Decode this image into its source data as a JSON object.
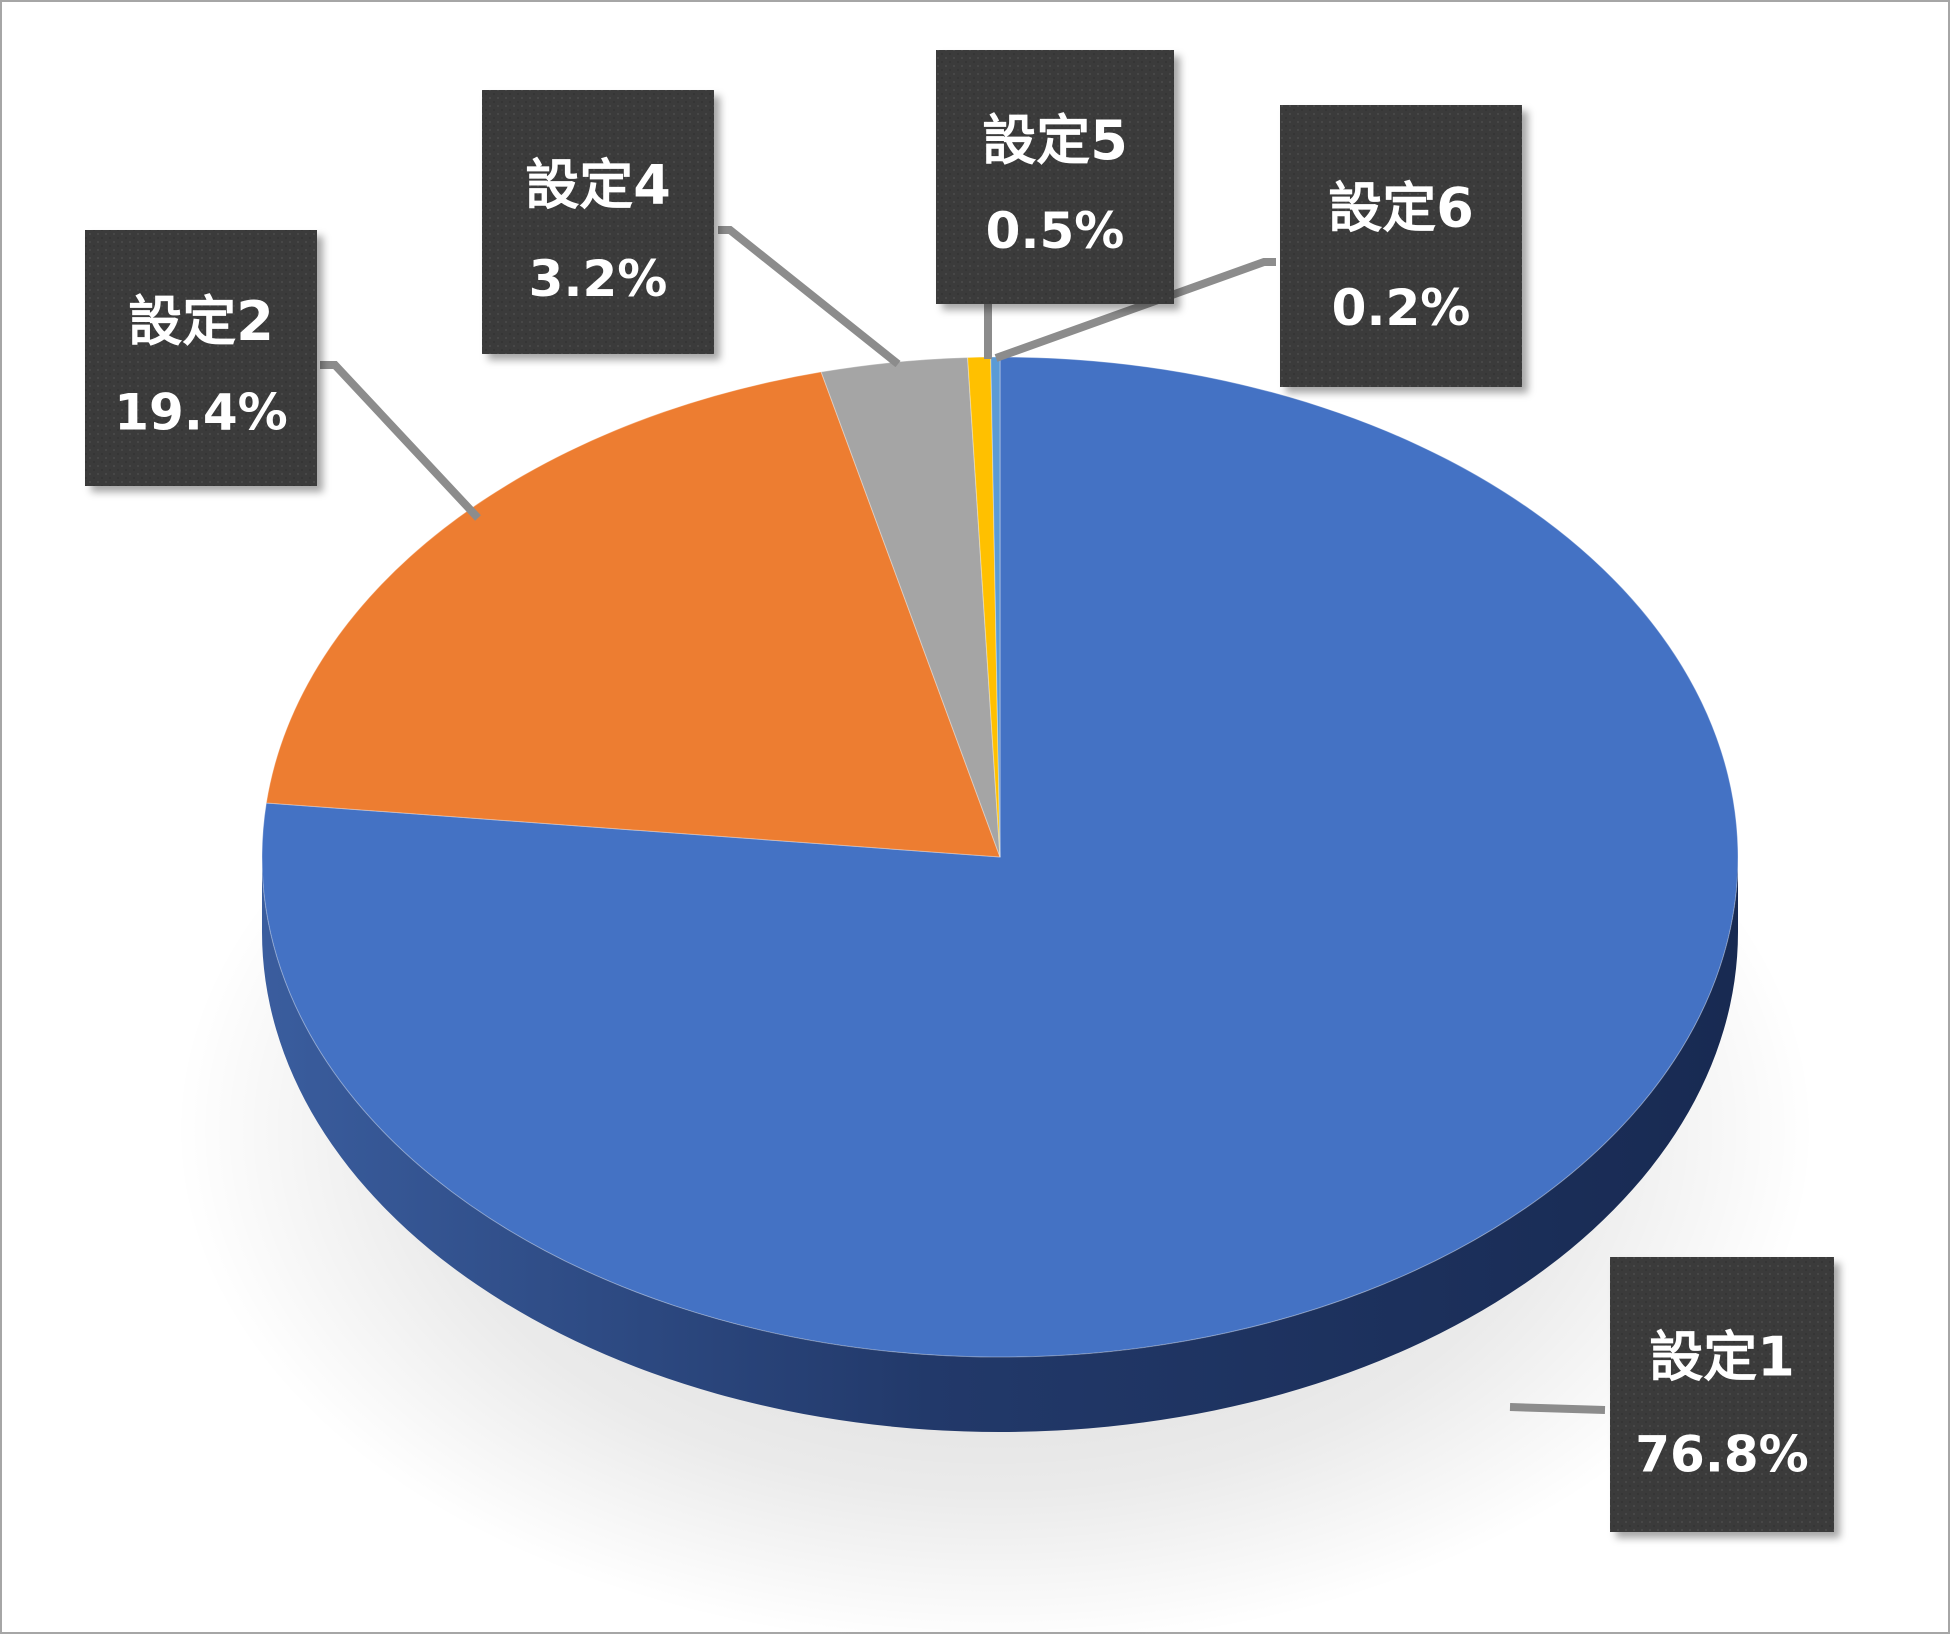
{
  "chart_data": {
    "type": "pie",
    "style": "3d",
    "title": "",
    "categories": [
      "設定1",
      "設定2",
      "設定4",
      "設定5",
      "設定6"
    ],
    "values": [
      76.8,
      19.4,
      3.2,
      0.5,
      0.2
    ],
    "value_labels": [
      "76.8%",
      "19.4%",
      "3.2%",
      "0.5%",
      "0.2%"
    ],
    "colors": [
      "#4472c4",
      "#ed7d31",
      "#a5a5a5",
      "#ffc000",
      "#5b9bd5"
    ],
    "start_angle": "12 o'clock",
    "direction": "clockwise",
    "legend": "none",
    "data_labels": "callout"
  }
}
